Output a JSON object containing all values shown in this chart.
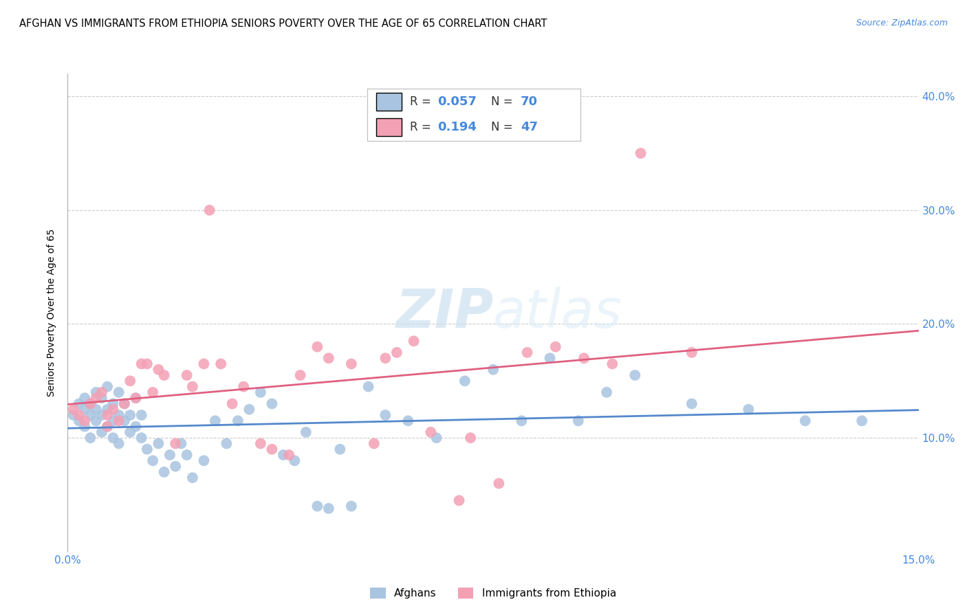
{
  "title": "AFGHAN VS IMMIGRANTS FROM ETHIOPIA SENIORS POVERTY OVER THE AGE OF 65 CORRELATION CHART",
  "source": "Source: ZipAtlas.com",
  "ylabel": "Seniors Poverty Over the Age of 65",
  "xlim": [
    0.0,
    0.15
  ],
  "ylim": [
    0.0,
    0.42
  ],
  "xticks": [
    0.0,
    0.03,
    0.06,
    0.09,
    0.12,
    0.15
  ],
  "yticks": [
    0.1,
    0.2,
    0.3,
    0.4
  ],
  "legend_labels": [
    "Afghans",
    "Immigrants from Ethiopia"
  ],
  "afghans_R": "0.057",
  "afghans_N": "70",
  "ethiopia_R": "0.194",
  "ethiopia_N": "47",
  "color_afghan": "#a8c4e0",
  "color_ethiopia": "#f4a0b4",
  "color_afghan_line": "#5588cc",
  "color_ethiopia_line": "#e06080",
  "color_text_blue": "#4488dd",
  "watermark_zip": "ZIP",
  "watermark_atlas": "atlas",
  "afghans_x": [
    0.001,
    0.002,
    0.002,
    0.003,
    0.003,
    0.003,
    0.004,
    0.004,
    0.004,
    0.005,
    0.005,
    0.005,
    0.006,
    0.006,
    0.006,
    0.007,
    0.007,
    0.007,
    0.008,
    0.008,
    0.008,
    0.009,
    0.009,
    0.009,
    0.01,
    0.01,
    0.011,
    0.011,
    0.012,
    0.012,
    0.013,
    0.013,
    0.014,
    0.015,
    0.016,
    0.017,
    0.018,
    0.019,
    0.02,
    0.021,
    0.022,
    0.024,
    0.026,
    0.028,
    0.03,
    0.032,
    0.034,
    0.036,
    0.038,
    0.04,
    0.042,
    0.044,
    0.046,
    0.048,
    0.05,
    0.053,
    0.056,
    0.06,
    0.065,
    0.07,
    0.075,
    0.08,
    0.085,
    0.09,
    0.095,
    0.1,
    0.11,
    0.12,
    0.13,
    0.14
  ],
  "afghans_y": [
    0.12,
    0.13,
    0.115,
    0.125,
    0.11,
    0.135,
    0.12,
    0.1,
    0.13,
    0.125,
    0.115,
    0.14,
    0.12,
    0.105,
    0.135,
    0.125,
    0.11,
    0.145,
    0.115,
    0.1,
    0.13,
    0.12,
    0.095,
    0.14,
    0.115,
    0.13,
    0.105,
    0.12,
    0.11,
    0.135,
    0.1,
    0.12,
    0.09,
    0.08,
    0.095,
    0.07,
    0.085,
    0.075,
    0.095,
    0.085,
    0.065,
    0.08,
    0.115,
    0.095,
    0.115,
    0.125,
    0.14,
    0.13,
    0.085,
    0.08,
    0.105,
    0.04,
    0.038,
    0.09,
    0.04,
    0.145,
    0.12,
    0.115,
    0.1,
    0.15,
    0.16,
    0.115,
    0.17,
    0.115,
    0.14,
    0.155,
    0.13,
    0.125,
    0.115,
    0.115
  ],
  "ethiopia_x": [
    0.001,
    0.002,
    0.003,
    0.004,
    0.005,
    0.006,
    0.007,
    0.007,
    0.008,
    0.009,
    0.01,
    0.011,
    0.012,
    0.013,
    0.014,
    0.015,
    0.016,
    0.017,
    0.019,
    0.021,
    0.022,
    0.024,
    0.025,
    0.027,
    0.029,
    0.031,
    0.034,
    0.036,
    0.039,
    0.041,
    0.044,
    0.046,
    0.05,
    0.054,
    0.056,
    0.058,
    0.061,
    0.064,
    0.069,
    0.071,
    0.076,
    0.081,
    0.086,
    0.091,
    0.096,
    0.101,
    0.11
  ],
  "ethiopia_y": [
    0.125,
    0.12,
    0.115,
    0.13,
    0.135,
    0.14,
    0.11,
    0.12,
    0.125,
    0.115,
    0.13,
    0.15,
    0.135,
    0.165,
    0.165,
    0.14,
    0.16,
    0.155,
    0.095,
    0.155,
    0.145,
    0.165,
    0.3,
    0.165,
    0.13,
    0.145,
    0.095,
    0.09,
    0.085,
    0.155,
    0.18,
    0.17,
    0.165,
    0.095,
    0.17,
    0.175,
    0.185,
    0.105,
    0.045,
    0.1,
    0.06,
    0.175,
    0.18,
    0.17,
    0.165,
    0.35,
    0.175
  ],
  "background_color": "#ffffff",
  "grid_color": "#cccccc"
}
